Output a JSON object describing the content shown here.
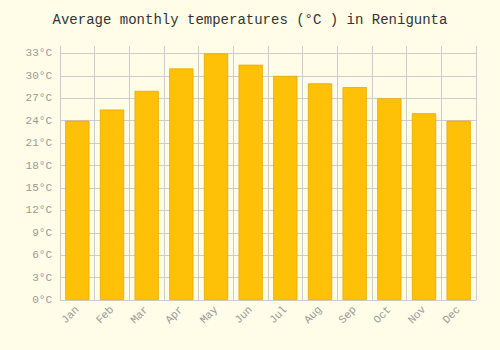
{
  "chart_data": {
    "type": "bar",
    "title": "Average monthly temperatures (°C ) in Renigunta",
    "categories": [
      "Jan",
      "Feb",
      "Mar",
      "Apr",
      "May",
      "Jun",
      "Jul",
      "Aug",
      "Sep",
      "Oct",
      "Nov",
      "Dec"
    ],
    "values": [
      24,
      25.5,
      28,
      31,
      33,
      31.5,
      30,
      29,
      28.5,
      27,
      25,
      24
    ],
    "color": "#FFC107",
    "ylim": [
      0,
      34
    ],
    "yticks": [
      {
        "value": 0,
        "label": "0°C"
      },
      {
        "value": 3,
        "label": "3°C"
      },
      {
        "value": 6,
        "label": "6°C"
      },
      {
        "value": 9,
        "label": "9°C"
      },
      {
        "value": 12,
        "label": "12°C"
      },
      {
        "value": 15,
        "label": "15°C"
      },
      {
        "value": 18,
        "label": "18°C"
      },
      {
        "value": 21,
        "label": "21°C"
      },
      {
        "value": 24,
        "label": "24°C"
      },
      {
        "value": 27,
        "label": "27°C"
      },
      {
        "value": 30,
        "label": "30°C"
      },
      {
        "value": 33,
        "label": "33°C"
      }
    ],
    "grid": true
  }
}
